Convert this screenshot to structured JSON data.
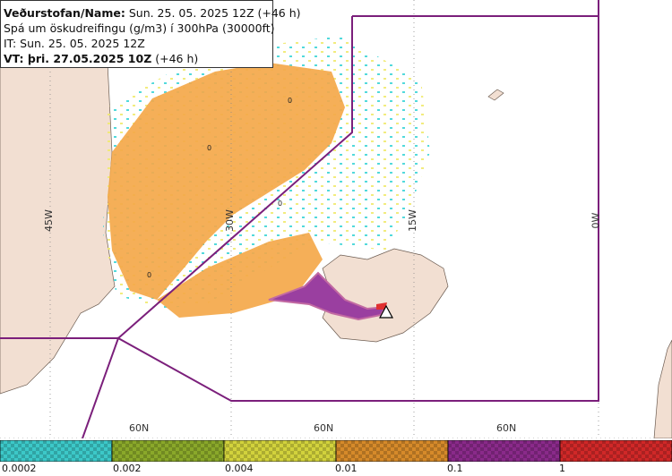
{
  "info": {
    "line1_bold": "Veðurstofan/Name:",
    "line1_rest": " Sun. 25. 05. 2025 12Z (+46 h)",
    "line2": "Spá um öskudreifingu (g/m3) í 300hPa (30000ft)",
    "line3": "IT: Sun. 25. 05. 2025 12Z",
    "line4_bold": "VT: þri. 27.05.2025 10Z",
    "line4_rest": " (+46 h)"
  },
  "grid": {
    "lon_labels": [
      "45W",
      "30W",
      "15W",
      "0W"
    ],
    "lat_labels": [
      "60N",
      "60N",
      "60N"
    ]
  },
  "contour_labels": [
    "0",
    "0",
    "0",
    "0"
  ],
  "legend": {
    "colors": [
      "#3cc8c8",
      "#8aa82a",
      "#d2d23c",
      "#d68a2a",
      "#8a2a8a",
      "#d02828"
    ],
    "labels": [
      "0.0002",
      "0.002",
      "0.004",
      "0.01",
      "0.1",
      "1"
    ]
  }
}
